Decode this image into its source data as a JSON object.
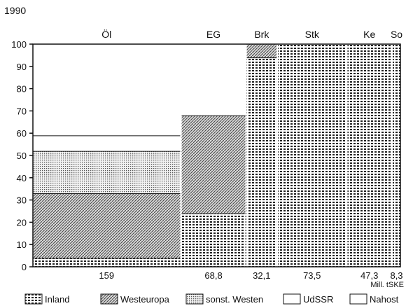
{
  "chart_data": {
    "type": "bar",
    "title": "1990",
    "unit_label": "Mill. tSKE",
    "ylim": [
      0,
      100
    ],
    "yticks": [
      0,
      10,
      20,
      30,
      40,
      50,
      60,
      70,
      80,
      90,
      100
    ],
    "bar_width_encodes": "total (Mill. tSKE)",
    "categories": [
      "Öl",
      "EG",
      "Brk",
      "Stk",
      "Ke",
      "So"
    ],
    "totals": [
      159,
      68.8,
      32.1,
      73.5,
      47.3,
      8.3
    ],
    "total_labels": [
      "159",
      "68,8",
      "32,1",
      "73,5",
      "47,3",
      "8,3"
    ],
    "series": [
      {
        "name": "Inland",
        "values": [
          4,
          24,
          94,
          100,
          100,
          100
        ]
      },
      {
        "name": "Westeuropa",
        "values": [
          29,
          44,
          6,
          0,
          0,
          0
        ]
      },
      {
        "name": "sonst. Westen",
        "values": [
          19,
          0,
          0,
          0,
          0,
          0
        ]
      },
      {
        "name": "UdSSR",
        "values": [
          7,
          32,
          0,
          0,
          0,
          0
        ]
      },
      {
        "name": "Nahost",
        "values": [
          41,
          0,
          0,
          0,
          0,
          0
        ]
      }
    ],
    "legend_position": "bottom",
    "grid": false
  }
}
